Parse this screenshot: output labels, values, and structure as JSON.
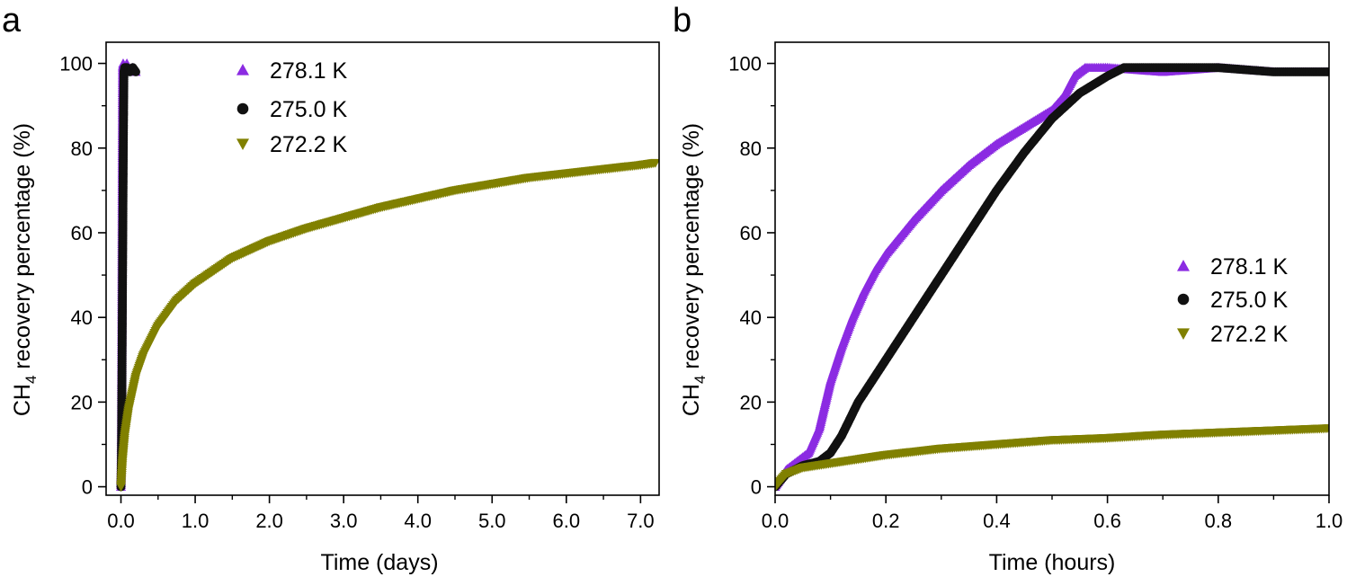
{
  "chart_data": [
    {
      "panel_label": "a",
      "type": "scatter",
      "xlabel": "Time (days)",
      "ylabel_main": "CH",
      "ylabel_sub": "4",
      "ylabel_rest": " recovery percentage (%)",
      "xlim": [
        -0.2,
        7.25
      ],
      "ylim": [
        -2,
        105
      ],
      "xticks": [
        0.0,
        1.0,
        2.0,
        3.0,
        4.0,
        5.0,
        6.0,
        7.0
      ],
      "xtick_labels": [
        "0.0",
        "1.0",
        "2.0",
        "3.0",
        "4.0",
        "5.0",
        "6.0",
        "7.0"
      ],
      "yticks": [
        0,
        20,
        40,
        60,
        80,
        100
      ],
      "ytick_labels": [
        "0",
        "20",
        "40",
        "60",
        "80",
        "100"
      ],
      "legend_position": "top-center",
      "series": [
        {
          "name": "278.1 K",
          "color": "#8b2be2",
          "marker": "triangle-up",
          "x": [
            0.0,
            0.004,
            0.008,
            0.012,
            0.016,
            0.02,
            0.023,
            0.03,
            0.05,
            0.08,
            0.12,
            0.16,
            0.2
          ],
          "y": [
            0,
            5,
            12,
            30,
            55,
            80,
            99,
            100,
            99,
            100,
            98,
            99,
            98
          ]
        },
        {
          "name": "275.0 K",
          "color": "#111111",
          "marker": "circle",
          "x": [
            0.0,
            0.004,
            0.006,
            0.01,
            0.015,
            0.02,
            0.025,
            0.03,
            0.036,
            0.04,
            0.05,
            0.08,
            0.12,
            0.16,
            0.2
          ],
          "y": [
            0,
            5,
            6,
            15,
            30,
            45,
            60,
            75,
            90,
            98,
            99,
            99,
            98,
            99,
            98
          ]
        },
        {
          "name": "272.2 K",
          "color": "#808000",
          "marker": "triangle-down",
          "x": [
            0.0,
            0.02,
            0.05,
            0.1,
            0.2,
            0.3,
            0.5,
            0.75,
            1.0,
            1.5,
            2.0,
            2.5,
            3.0,
            3.5,
            4.0,
            4.5,
            5.0,
            5.5,
            6.0,
            6.5,
            7.0,
            7.2
          ],
          "y": [
            0,
            6,
            12,
            18,
            26,
            31,
            38,
            44,
            48,
            54,
            58,
            61,
            63.5,
            66,
            68,
            70,
            71.5,
            73,
            74,
            75,
            76,
            76.5
          ]
        }
      ]
    },
    {
      "panel_label": "b",
      "type": "scatter",
      "xlabel": "Time (hours)",
      "ylabel_main": "CH",
      "ylabel_sub": "4",
      "ylabel_rest": " recovery percentage (%)",
      "xlim": [
        0,
        1.0
      ],
      "ylim": [
        -2,
        105
      ],
      "xticks": [
        0.0,
        0.2,
        0.4,
        0.6,
        0.8,
        1.0
      ],
      "xtick_labels": [
        "0.0",
        "0.2",
        "0.4",
        "0.6",
        "0.8",
        "1.0"
      ],
      "yticks": [
        0,
        20,
        40,
        60,
        80,
        100
      ],
      "ytick_labels": [
        "0",
        "20",
        "40",
        "60",
        "80",
        "100"
      ],
      "legend_position": "center-right",
      "series": [
        {
          "name": "278.1 K",
          "color": "#8b2be2",
          "marker": "triangle-up",
          "x": [
            0.0,
            0.02,
            0.04,
            0.06,
            0.08,
            0.1,
            0.12,
            0.14,
            0.16,
            0.18,
            0.2,
            0.25,
            0.3,
            0.35,
            0.4,
            0.45,
            0.5,
            0.52,
            0.54,
            0.56,
            0.6,
            0.7,
            0.8,
            0.9,
            1.0
          ],
          "y": [
            0,
            4,
            6,
            8,
            14,
            25,
            33,
            40,
            46,
            51,
            55,
            63,
            70,
            76,
            81,
            85,
            89,
            92,
            97,
            99,
            99,
            98,
            99,
            98,
            98
          ]
        },
        {
          "name": "275.0 K",
          "color": "#111111",
          "marker": "circle",
          "x": [
            0.0,
            0.02,
            0.05,
            0.08,
            0.1,
            0.12,
            0.15,
            0.2,
            0.25,
            0.3,
            0.35,
            0.4,
            0.45,
            0.5,
            0.55,
            0.6,
            0.63,
            0.7,
            0.8,
            0.9,
            1.0
          ],
          "y": [
            0,
            3,
            5,
            6,
            8,
            12,
            20,
            30,
            40,
            50,
            60,
            70,
            79,
            87,
            93,
            97,
            99,
            99,
            99,
            98,
            98
          ]
        },
        {
          "name": "272.2 K",
          "color": "#808000",
          "marker": "triangle-down",
          "x": [
            0.0,
            0.02,
            0.05,
            0.1,
            0.15,
            0.2,
            0.3,
            0.4,
            0.5,
            0.6,
            0.7,
            0.8,
            0.9,
            1.0
          ],
          "y": [
            0,
            3,
            4.5,
            5.5,
            6.5,
            7.5,
            9,
            10,
            11,
            11.5,
            12.3,
            12.8,
            13.3,
            13.8
          ]
        }
      ]
    }
  ]
}
